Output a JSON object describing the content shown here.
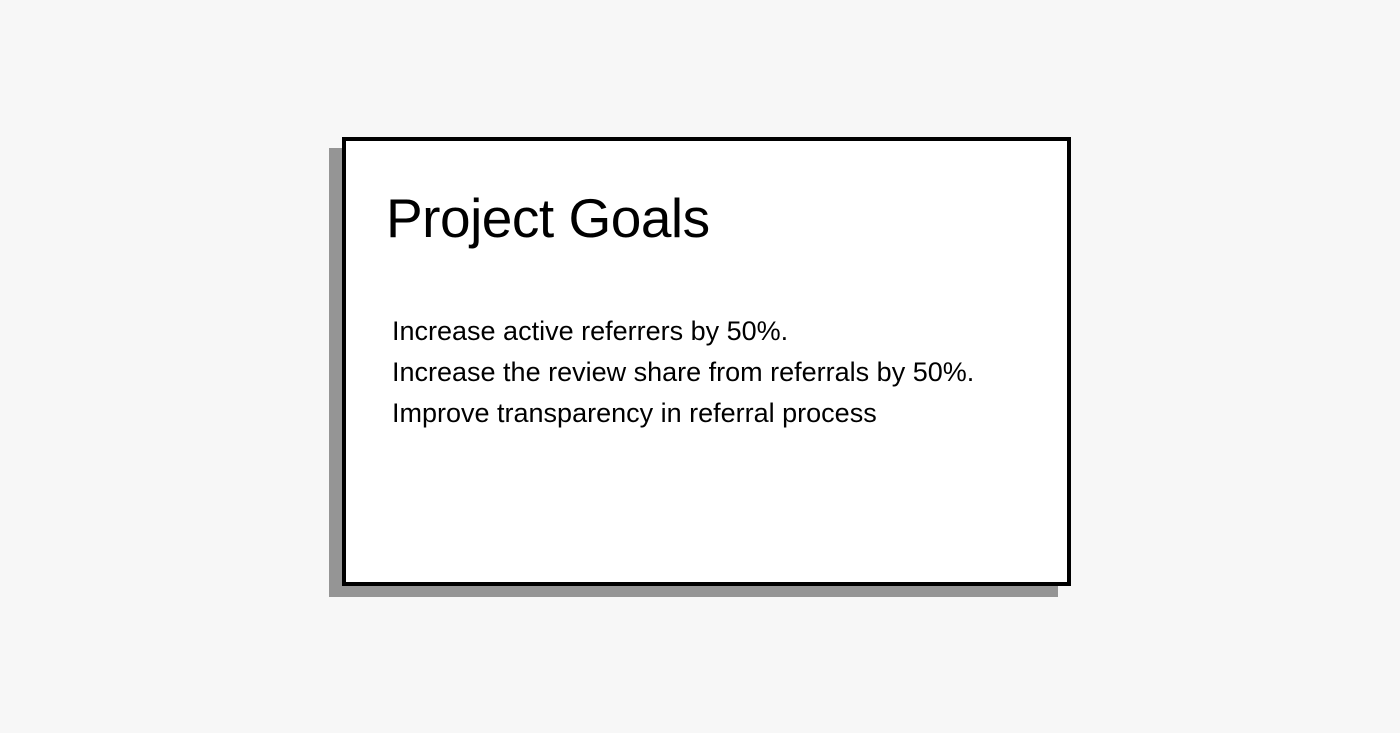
{
  "card": {
    "title": "Project Goals",
    "goals": [
      "Increase active referrers by 50%.",
      "Increase the review share from referrals by 50%.",
      "Improve transparency in referral process"
    ]
  },
  "colors": {
    "background": "#f7f7f7",
    "card": "#ffffff",
    "border": "#000000",
    "shadow": "#959595",
    "text": "#000000"
  }
}
